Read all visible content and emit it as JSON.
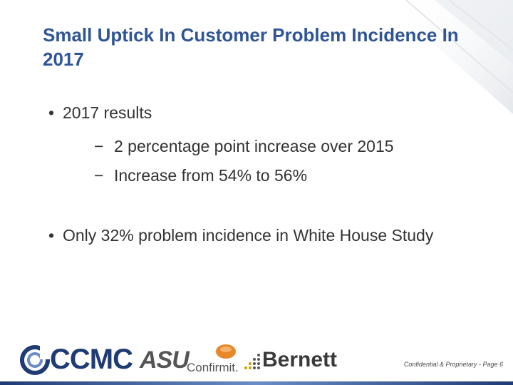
{
  "slide": {
    "title": "Small Uptick In Customer Problem Incidence In 2017",
    "bullets": [
      {
        "text": "2017 results",
        "subitems": [
          "2 percentage point increase over 2015",
          "Increase from 54% to 56%"
        ]
      },
      {
        "text": "Only 32% problem incidence in White House Study"
      }
    ],
    "bullet_symbol": "•",
    "dash_symbol": "−"
  },
  "footer": {
    "logos": {
      "ccmc": "CCMC",
      "asu": "ASU",
      "confirmit": "Confirmit.",
      "bernett": "Bernett"
    },
    "confidential": "Confidential & Proprietary - Page 6"
  },
  "colors": {
    "title": "#2f5597",
    "body_text": "#333333",
    "ccmc_blue": "#1f3b73",
    "confirmit_orange": "#e8862a"
  }
}
